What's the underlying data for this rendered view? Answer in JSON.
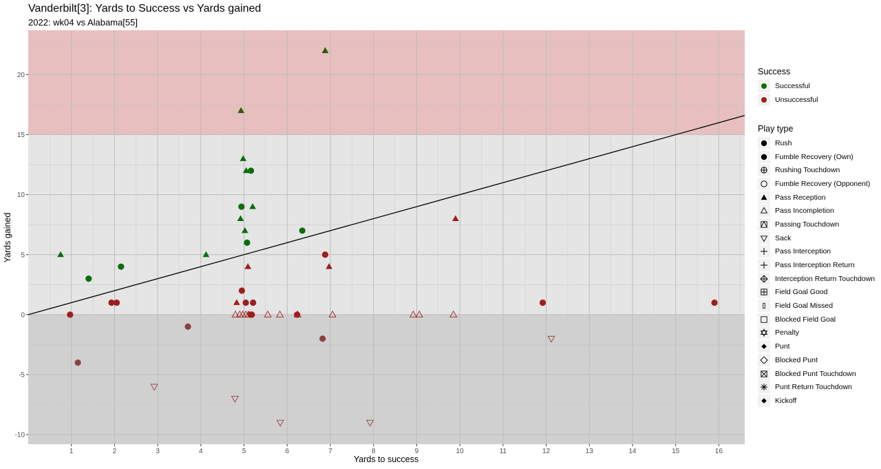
{
  "chart_data": {
    "type": "scatter",
    "title": "Vanderbilt[3]: Yards to Success vs Yards gained",
    "subtitle": "2022: wk04 vs Alabama[55]",
    "xlabel": "Yards to success",
    "ylabel": "Yards gained",
    "xlim": [
      0,
      16.6
    ],
    "ylim": [
      -10.8,
      23.7
    ],
    "x_ticks": [
      1,
      2,
      3,
      4,
      5,
      6,
      7,
      8,
      9,
      10,
      11,
      12,
      13,
      14,
      15,
      16
    ],
    "y_ticks": [
      -10,
      -5,
      0,
      5,
      10,
      15,
      20
    ],
    "grid": true,
    "bands": [
      {
        "from": 15,
        "to": 23.7,
        "color": "#e8bfbf"
      },
      {
        "from": 0,
        "to": 15,
        "color": "#e5e5e5"
      },
      {
        "from": -10.8,
        "to": 0,
        "color": "#d0d0d0"
      }
    ],
    "reference_line": {
      "type": "y=x",
      "color": "#000000"
    },
    "colors": {
      "Successful": "#0a6e0a",
      "Unsuccessful": "#9e1e1e",
      "Successful_in_band": "#2e5a0a",
      "Unsuccessful_in_band": "#8e4040"
    },
    "legend_placement": "right",
    "legend_success": {
      "title": "Success",
      "items": [
        {
          "label": "Successful",
          "color": "#0a6e0a"
        },
        {
          "label": "Unsuccessful",
          "color": "#9e1e1e"
        }
      ]
    },
    "legend_playtype": {
      "title": "Play type",
      "items": [
        {
          "label": "Rush",
          "shape": "circle-filled"
        },
        {
          "label": "Fumble Recovery (Own)",
          "shape": "circle-filled"
        },
        {
          "label": "Rushing Touchdown",
          "shape": "circle-plus"
        },
        {
          "label": "Fumble Recovery (Opponent)",
          "shape": "circle-open"
        },
        {
          "label": "Pass Reception",
          "shape": "triangle-filled"
        },
        {
          "label": "Pass Incompletion",
          "shape": "triangle-open"
        },
        {
          "label": "Passing Touchdown",
          "shape": "square-triangle"
        },
        {
          "label": "Sack",
          "shape": "triangle-down-open"
        },
        {
          "label": "Pass Interception",
          "shape": "plus"
        },
        {
          "label": "Pass Interception Return",
          "shape": "plus"
        },
        {
          "label": "Interception Return Touchdown",
          "shape": "diamond-plus"
        },
        {
          "label": "Field Goal Good",
          "shape": "square-plus"
        },
        {
          "label": "Field Goal Missed",
          "shape": "thin-rect"
        },
        {
          "label": "Blocked Field Goal",
          "shape": "square-open"
        },
        {
          "label": "Penalty",
          "shape": "star-of-david"
        },
        {
          "label": "Punt",
          "shape": "diamond-filled"
        },
        {
          "label": "Blocked Punt",
          "shape": "diamond-open"
        },
        {
          "label": "Blocked Punt Touchdown",
          "shape": "square-x"
        },
        {
          "label": "Punt Return Touchdown",
          "shape": "asterisk"
        },
        {
          "label": "Kickoff",
          "shape": "diamond-filled"
        }
      ]
    },
    "points": [
      {
        "x": 0.75,
        "y": 5,
        "shape": "triangle-filled",
        "success": "Successful"
      },
      {
        "x": 1.4,
        "y": 3,
        "shape": "circle-filled",
        "success": "Successful"
      },
      {
        "x": 2.15,
        "y": 4,
        "shape": "circle-filled",
        "success": "Successful"
      },
      {
        "x": 4.12,
        "y": 5,
        "shape": "triangle-filled",
        "success": "Successful"
      },
      {
        "x": 4.93,
        "y": 17,
        "shape": "triangle-filled",
        "success": "Successful"
      },
      {
        "x": 6.88,
        "y": 22,
        "shape": "triangle-filled",
        "success": "Successful"
      },
      {
        "x": 4.98,
        "y": 13,
        "shape": "triangle-filled",
        "success": "Successful"
      },
      {
        "x": 5.05,
        "y": 12,
        "shape": "triangle-filled",
        "success": "Successful"
      },
      {
        "x": 5.16,
        "y": 12,
        "shape": "circle-filled",
        "success": "Successful"
      },
      {
        "x": 4.94,
        "y": 9,
        "shape": "circle-filled",
        "success": "Successful"
      },
      {
        "x": 5.2,
        "y": 9,
        "shape": "triangle-filled",
        "success": "Successful"
      },
      {
        "x": 4.92,
        "y": 8,
        "shape": "triangle-filled",
        "success": "Successful"
      },
      {
        "x": 5.02,
        "y": 7,
        "shape": "triangle-filled",
        "success": "Successful"
      },
      {
        "x": 6.35,
        "y": 7,
        "shape": "circle-filled",
        "success": "Successful"
      },
      {
        "x": 5.07,
        "y": 6,
        "shape": "circle-filled",
        "success": "Successful"
      },
      {
        "x": 0.97,
        "y": 0,
        "shape": "circle-filled",
        "success": "Unsuccessful"
      },
      {
        "x": 1.15,
        "y": -4,
        "shape": "circle-filled",
        "success": "Unsuccessful"
      },
      {
        "x": 1.93,
        "y": 1,
        "shape": "circle-filled",
        "success": "Unsuccessful"
      },
      {
        "x": 2.05,
        "y": 1,
        "shape": "circle-filled",
        "success": "Unsuccessful"
      },
      {
        "x": 2.92,
        "y": -6,
        "shape": "triangle-down-open",
        "success": "Unsuccessful"
      },
      {
        "x": 3.7,
        "y": -1,
        "shape": "circle-filled",
        "success": "Unsuccessful"
      },
      {
        "x": 4.79,
        "y": -7,
        "shape": "triangle-down-open",
        "success": "Unsuccessful"
      },
      {
        "x": 4.83,
        "y": 1,
        "shape": "triangle-filled",
        "success": "Unsuccessful"
      },
      {
        "x": 4.95,
        "y": 2,
        "shape": "circle-filled",
        "success": "Unsuccessful"
      },
      {
        "x": 5.04,
        "y": 1,
        "shape": "circle-filled",
        "success": "Unsuccessful"
      },
      {
        "x": 5.09,
        "y": 4,
        "shape": "triangle-filled",
        "success": "Unsuccessful"
      },
      {
        "x": 5.21,
        "y": 1,
        "shape": "circle-filled",
        "success": "Unsuccessful"
      },
      {
        "x": 5.15,
        "y": 0,
        "shape": "circle-filled",
        "success": "Unsuccessful"
      },
      {
        "x": 5.18,
        "y": 0,
        "shape": "circle-filled",
        "success": "Unsuccessful"
      },
      {
        "x": 4.8,
        "y": 0,
        "shape": "triangle-open",
        "success": "Unsuccessful"
      },
      {
        "x": 4.9,
        "y": 0,
        "shape": "triangle-open",
        "success": "Unsuccessful"
      },
      {
        "x": 4.97,
        "y": 0,
        "shape": "triangle-open",
        "success": "Unsuccessful"
      },
      {
        "x": 5.04,
        "y": 0,
        "shape": "triangle-open",
        "success": "Unsuccessful"
      },
      {
        "x": 5.1,
        "y": 0,
        "shape": "triangle-open",
        "success": "Unsuccessful"
      },
      {
        "x": 5.55,
        "y": 0,
        "shape": "triangle-open",
        "success": "Unsuccessful"
      },
      {
        "x": 5.84,
        "y": -9,
        "shape": "triangle-down-open",
        "success": "Unsuccessful"
      },
      {
        "x": 5.83,
        "y": 0,
        "shape": "triangle-open",
        "success": "Unsuccessful"
      },
      {
        "x": 6.24,
        "y": 0,
        "shape": "triangle-open",
        "success": "Unsuccessful"
      },
      {
        "x": 6.23,
        "y": 0,
        "shape": "circle-filled",
        "success": "Unsuccessful"
      },
      {
        "x": 6.82,
        "y": -2,
        "shape": "circle-filled",
        "success": "Unsuccessful"
      },
      {
        "x": 6.88,
        "y": 5,
        "shape": "circle-filled",
        "success": "Unsuccessful"
      },
      {
        "x": 6.97,
        "y": 4,
        "shape": "triangle-filled",
        "success": "Unsuccessful"
      },
      {
        "x": 7.05,
        "y": 0,
        "shape": "triangle-open",
        "success": "Unsuccessful"
      },
      {
        "x": 7.92,
        "y": -9,
        "shape": "triangle-down-open",
        "success": "Unsuccessful"
      },
      {
        "x": 8.92,
        "y": 0,
        "shape": "triangle-open",
        "success": "Unsuccessful"
      },
      {
        "x": 9.06,
        "y": 0,
        "shape": "triangle-open",
        "success": "Unsuccessful"
      },
      {
        "x": 9.85,
        "y": 0,
        "shape": "triangle-open",
        "success": "Unsuccessful"
      },
      {
        "x": 9.9,
        "y": 8,
        "shape": "triangle-filled",
        "success": "Unsuccessful"
      },
      {
        "x": 11.92,
        "y": 1,
        "shape": "circle-filled",
        "success": "Unsuccessful"
      },
      {
        "x": 12.12,
        "y": -2,
        "shape": "triangle-down-open",
        "success": "Unsuccessful"
      },
      {
        "x": 15.9,
        "y": 1,
        "shape": "circle-filled",
        "success": "Unsuccessful"
      }
    ]
  }
}
